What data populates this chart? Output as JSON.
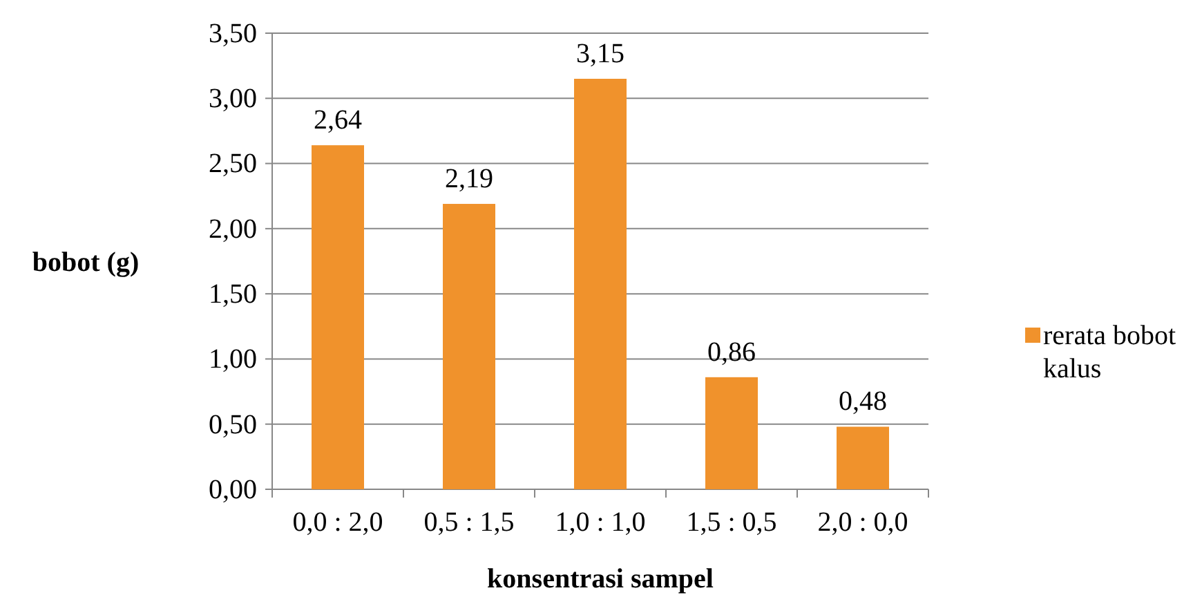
{
  "chart_data": {
    "type": "bar",
    "xlabel": "konsentrasi sampel",
    "ylabel": "bobot (g)",
    "categories": [
      "0,0 : 2,0",
      "0,5 : 1,5",
      "1,0 : 1,0",
      "1,5 : 0,5",
      "2,0 : 0,0"
    ],
    "series": [
      {
        "name": "rerata bobot kalus",
        "color": "#f0922c",
        "values": [
          2.64,
          2.19,
          3.15,
          0.86,
          0.48
        ],
        "value_labels": [
          "2,64",
          "2,19",
          "3,15",
          "0,86",
          "0,48"
        ]
      }
    ],
    "ylim": [
      0,
      3.5
    ],
    "yticks": [
      {
        "value": 0,
        "label": "0,00"
      },
      {
        "value": 0.5,
        "label": "0,50"
      },
      {
        "value": 1,
        "label": "1,00"
      },
      {
        "value": 1.5,
        "label": "1,50"
      },
      {
        "value": 2,
        "label": "2,00"
      },
      {
        "value": 2.5,
        "label": "2,50"
      },
      {
        "value": 3,
        "label": "3,00"
      },
      {
        "value": 3.5,
        "label": "3,50"
      }
    ],
    "grid": "y",
    "legend": "right"
  }
}
